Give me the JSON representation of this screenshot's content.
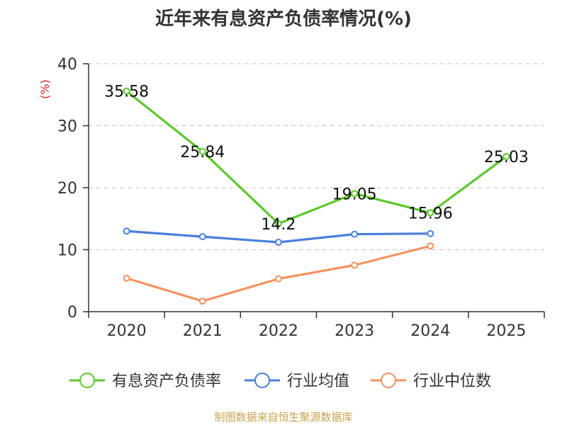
{
  "chart_data": {
    "type": "line",
    "title": "近年来有息资产负债率情况(%)",
    "ylabel": "(%)",
    "xlabel": "",
    "categories": [
      "2020",
      "2021",
      "2022",
      "2023",
      "2024",
      "2025"
    ],
    "ylim": [
      0,
      40
    ],
    "yticks": [
      "0",
      "10",
      "20",
      "30",
      "40"
    ],
    "grid": true,
    "legend_position": "bottom",
    "series": [
      {
        "name": "有息资产负债率",
        "color": "#5cc72b",
        "values": [
          35.58,
          25.84,
          14.2,
          19.05,
          15.96,
          25.03
        ],
        "labels": [
          "35.58",
          "25.84",
          "14.2",
          "19.05",
          "15.96",
          "25.03"
        ]
      },
      {
        "name": "行业均值",
        "color": "#4a7fdc",
        "values": [
          13.0,
          12.1,
          11.2,
          12.5,
          12.6,
          null
        ]
      },
      {
        "name": "行业中位数",
        "color": "#f5925e",
        "values": [
          5.4,
          1.7,
          5.3,
          7.5,
          10.6,
          null
        ]
      }
    ]
  },
  "source": "制图数据来自恒生聚源数据库"
}
